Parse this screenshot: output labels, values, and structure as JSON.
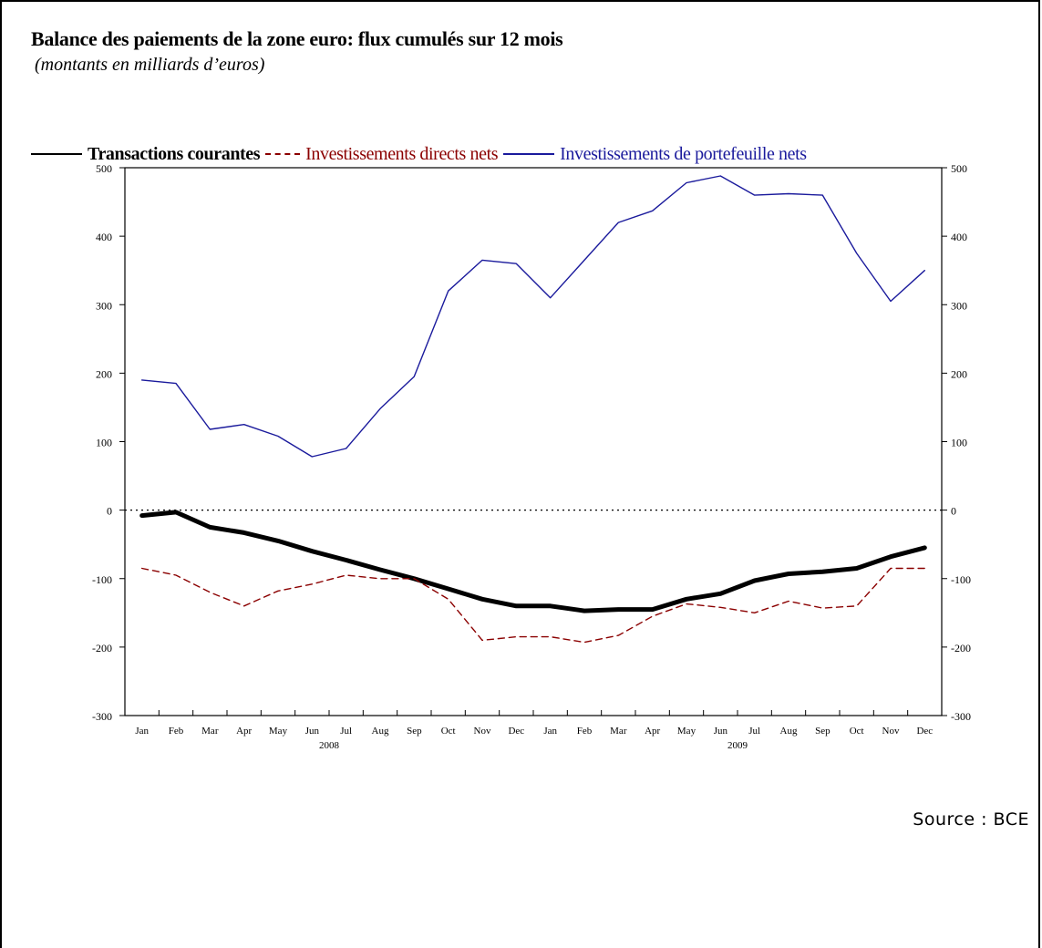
{
  "title": "Balance des paiements de la zone euro: flux cumulés sur 12 mois",
  "subtitle": "(montants en milliards d’euros)",
  "source": "Source : BCE",
  "legend": [
    {
      "label": "Transactions courantes",
      "color": "#000000",
      "style": "solid-bold"
    },
    {
      "label": "Investissements directs nets",
      "color": "#8b0000",
      "style": "dashed"
    },
    {
      "label": "Investissements de portefeuille nets",
      "color": "#1a1a9c",
      "style": "solid"
    }
  ],
  "chart_data": {
    "type": "line",
    "title": "Balance des paiements de la zone euro: flux cumulés sur 12 mois",
    "subtitle": "(montants en milliards d’euros)",
    "x_months": [
      "Jan",
      "Feb",
      "Mar",
      "Apr",
      "May",
      "Jun",
      "Jul",
      "Aug",
      "Sep",
      "Oct",
      "Nov",
      "Dec",
      "Jan",
      "Feb",
      "Mar",
      "Apr",
      "May",
      "Jun",
      "Jul",
      "Aug",
      "Sep",
      "Oct",
      "Nov",
      "Dec"
    ],
    "x_years": [
      {
        "label": "2008",
        "month_index": 5.5
      },
      {
        "label": "2009",
        "month_index": 17.5
      }
    ],
    "ylim": [
      -300,
      500
    ],
    "yticks": [
      -300,
      -200,
      -100,
      0,
      100,
      200,
      300,
      400,
      500
    ],
    "y_axis_both_sides": true,
    "zero_line": "dotted",
    "grid": false,
    "series": [
      {
        "name": "Investissements de portefeuille nets",
        "color": "#1a1a9c",
        "style": "solid",
        "points": [
          [
            0,
            190
          ],
          [
            1,
            185
          ],
          [
            2,
            118
          ],
          [
            3,
            125
          ],
          [
            4,
            108
          ],
          [
            5,
            78
          ],
          [
            6,
            90
          ],
          [
            7,
            148
          ],
          [
            8,
            195
          ],
          [
            9,
            320
          ],
          [
            10,
            365
          ],
          [
            11,
            360
          ],
          [
            12,
            310
          ],
          [
            13,
            365
          ],
          [
            14,
            420
          ],
          [
            15,
            437
          ],
          [
            16,
            478
          ],
          [
            17,
            488
          ],
          [
            18,
            460
          ],
          [
            19,
            462
          ],
          [
            20,
            460
          ],
          [
            21,
            375
          ],
          [
            22,
            305
          ],
          [
            23,
            350
          ]
        ]
      },
      {
        "name": "Transactions courantes",
        "color": "#000000",
        "style": "thick",
        "points": [
          [
            0,
            -8
          ],
          [
            1,
            -3
          ],
          [
            2,
            -25
          ],
          [
            3,
            -33
          ],
          [
            4,
            -45
          ],
          [
            5,
            -60
          ],
          [
            6,
            -73
          ],
          [
            7,
            -87
          ],
          [
            8,
            -100
          ],
          [
            9,
            -115
          ],
          [
            10,
            -130
          ],
          [
            11,
            -140
          ],
          [
            12,
            -140
          ],
          [
            13,
            -147
          ],
          [
            14,
            -145
          ],
          [
            15,
            -145
          ],
          [
            16,
            -130
          ],
          [
            17,
            -122
          ],
          [
            18,
            -103
          ],
          [
            19,
            -93
          ],
          [
            20,
            -90
          ],
          [
            21,
            -85
          ],
          [
            22,
            -68
          ],
          [
            23,
            -55
          ]
        ]
      },
      {
        "name": "Investissements directs nets",
        "color": "#8b0000",
        "style": "dashed",
        "points": [
          [
            0,
            -85
          ],
          [
            1,
            -95
          ],
          [
            2,
            -120
          ],
          [
            3,
            -140
          ],
          [
            4,
            -118
          ],
          [
            5,
            -108
          ],
          [
            6,
            -95
          ],
          [
            7,
            -100
          ],
          [
            8,
            -100
          ],
          [
            9,
            -130
          ],
          [
            10,
            -190
          ],
          [
            11,
            -185
          ],
          [
            12,
            -185
          ],
          [
            13,
            -193
          ],
          [
            14,
            -183
          ],
          [
            15,
            -155
          ],
          [
            16,
            -137
          ],
          [
            17,
            -142
          ],
          [
            18,
            -150
          ],
          [
            19,
            -133
          ],
          [
            20,
            -143
          ],
          [
            21,
            -140
          ],
          [
            22,
            -85
          ],
          [
            23,
            -85
          ]
        ]
      }
    ]
  }
}
